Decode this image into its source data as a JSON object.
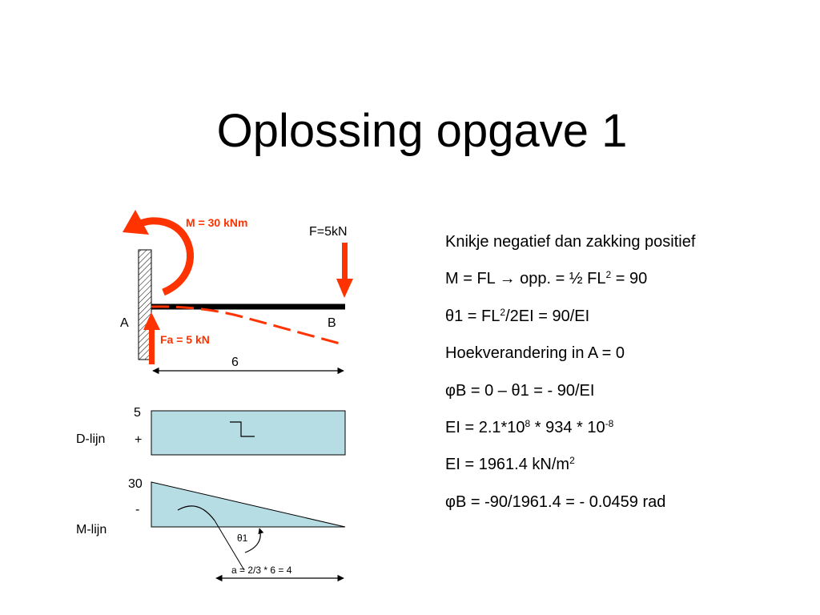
{
  "title": "Oplossing opgave 1",
  "beam": {
    "moment_label": "M = 30 kNm",
    "force_label": "F=5kN",
    "reaction_label": "Fa = 5 kN",
    "support_label": "A",
    "end_label": "B",
    "span_label": "6"
  },
  "d_line": {
    "label": "D-lijn",
    "value": "5",
    "sign": "+"
  },
  "m_line": {
    "label": "M-lijn",
    "value": "30",
    "sign": "-",
    "angle_label": "θ1",
    "lever_label": "a = 2/3 * 6 = 4"
  },
  "solution": [
    {
      "parts": [
        {
          "t": "Knikje negatief dan zakking positief"
        }
      ]
    },
    {
      "parts": [
        {
          "t": "M = FL "
        },
        {
          "t": "→",
          "sym": true
        },
        {
          "t": " opp. = ½ FL"
        },
        {
          "t": "2",
          "sup": true
        },
        {
          "t": " = 90"
        }
      ]
    },
    {
      "parts": [
        {
          "t": "θ1 = FL"
        },
        {
          "t": "2",
          "sup": true
        },
        {
          "t": "/2EI = 90/EI"
        }
      ]
    },
    {
      "parts": [
        {
          "t": "Hoekverandering in A = 0"
        }
      ]
    },
    {
      "parts": [
        {
          "t": "φB = 0 – θ1 = - 90/EI"
        }
      ]
    },
    {
      "parts": [
        {
          "t": "EI = 2.1*10"
        },
        {
          "t": "8",
          "sup": true
        },
        {
          "t": " * 934 * 10"
        },
        {
          "t": "-8",
          "sup": true
        }
      ]
    },
    {
      "parts": [
        {
          "t": "EI = 1961.4 kN/m"
        },
        {
          "t": "2",
          "sup": true
        }
      ]
    },
    {
      "parts": [
        {
          "t": "φB = -90/1961.4 = - 0.0459 rad"
        }
      ]
    }
  ],
  "colors": {
    "load_arrow": "#ff3300",
    "label_red": "#ff3300",
    "diagram_fill": "#b7dde4",
    "beam": "#000000",
    "wall_fill": "#ffffff"
  }
}
